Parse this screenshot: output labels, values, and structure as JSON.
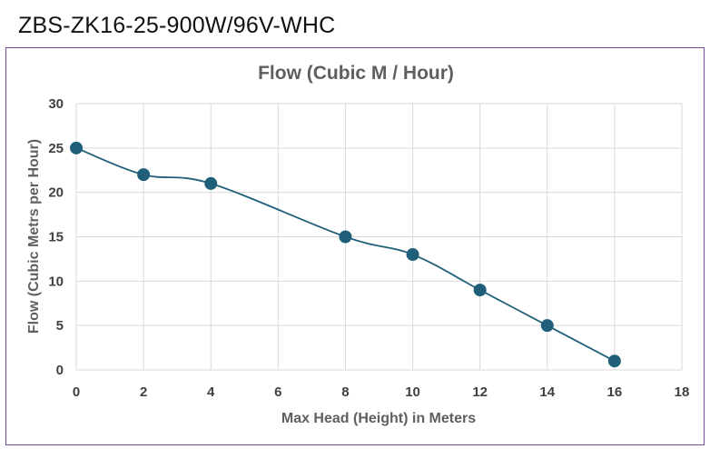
{
  "header": {
    "model": "ZBS-ZK16-25-900W/96V-WHC"
  },
  "chart_data": {
    "type": "line",
    "title": "Flow (Cubic M / Hour)",
    "xlabel": "Max Head (Height) in Meters",
    "ylabel": "Flow (Cubic Metrs per Hour)",
    "xlim": [
      0,
      18
    ],
    "ylim": [
      0,
      30
    ],
    "xticks": [
      0,
      2,
      4,
      6,
      8,
      10,
      12,
      14,
      16,
      18
    ],
    "yticks": [
      0,
      5,
      10,
      15,
      20,
      25,
      30
    ],
    "grid": true,
    "legend": "none",
    "smooth": true,
    "series": [
      {
        "x": [
          0,
          2,
          4,
          8,
          10,
          12,
          14,
          16
        ],
        "y": [
          25,
          22,
          21,
          15,
          13,
          9,
          5,
          1
        ],
        "color": "#1f5f7a"
      }
    ]
  }
}
